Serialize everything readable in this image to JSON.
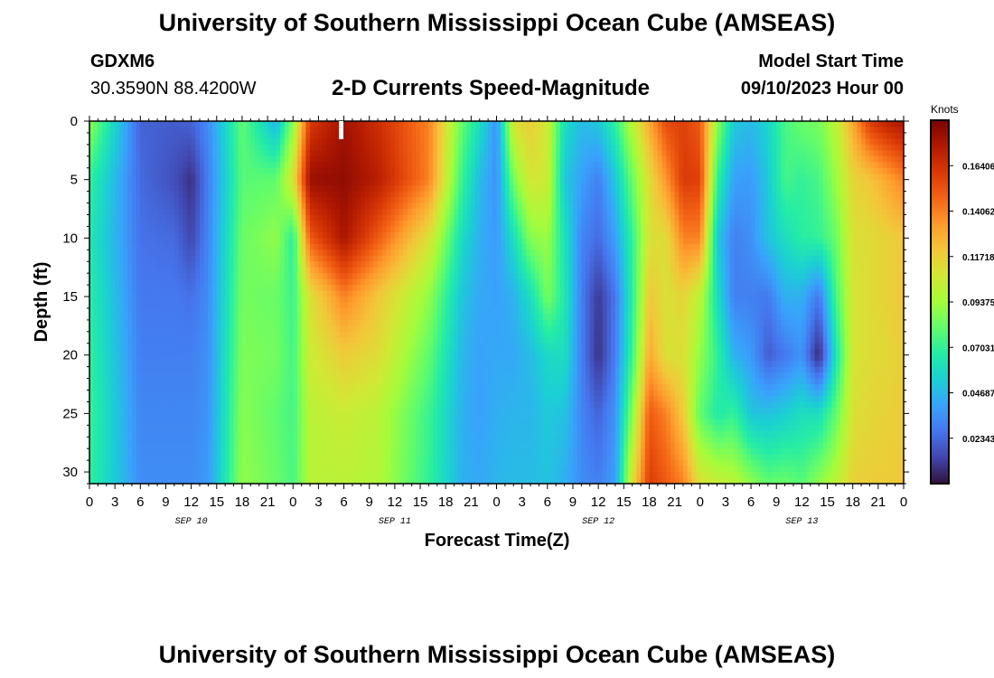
{
  "header": {
    "title": "University of Southern Mississippi Ocean Cube (AMSEAS)",
    "station": "GDXM6",
    "coords": "30.3590N  88.4200W",
    "product": "2-D Currents Speed-Magnitude",
    "model_label": "Model Start Time",
    "model_time": "09/10/2023 Hour 00"
  },
  "footer": {
    "title": "University of Southern Mississippi Ocean Cube (AMSEAS)"
  },
  "chart_data": {
    "type": "heatmap",
    "title": "2-D Currents Speed-Magnitude",
    "xlabel": "Forecast Time(Z)",
    "ylabel": "Depth (ft)",
    "x_ticks": [
      "0",
      "3",
      "6",
      "9",
      "12",
      "15",
      "18",
      "21",
      "0",
      "3",
      "6",
      "9",
      "12",
      "15",
      "18",
      "21",
      "0",
      "3",
      "6",
      "9",
      "12",
      "15",
      "18",
      "21",
      "0",
      "3",
      "6",
      "9",
      "12",
      "15",
      "18",
      "21",
      "0"
    ],
    "x_hours": [
      0,
      3,
      6,
      9,
      12,
      15,
      18,
      21,
      24,
      27,
      30,
      33,
      36,
      39,
      42,
      45,
      48,
      51,
      54,
      57,
      60,
      63,
      66,
      69,
      72,
      75,
      78,
      81,
      84,
      87,
      90,
      93,
      96
    ],
    "day_labels": [
      {
        "label": "SEP 10",
        "hour": 12
      },
      {
        "label": "SEP 11",
        "hour": 36
      },
      {
        "label": "SEP 12",
        "hour": 60
      },
      {
        "label": "SEP 13",
        "hour": 84
      }
    ],
    "xlim": [
      0,
      96
    ],
    "y_ticks": [
      0,
      5,
      10,
      15,
      20,
      25,
      30
    ],
    "ylim": [
      0,
      31
    ],
    "y_inverted": true,
    "colorbar": {
      "label": "Knots",
      "ticks": [
        "0.16406",
        "0.14062",
        "0.11718",
        "0.09375",
        "0.07031",
        "0.04687",
        "0.02343"
      ],
      "tick_values": [
        0.16406,
        0.14062,
        0.11718,
        0.09375,
        0.07031,
        0.04687,
        0.02343
      ],
      "range": [
        0,
        0.1875
      ],
      "colormap": [
        "#30123b",
        "#4145ab",
        "#4675ed",
        "#39a2fc",
        "#1bcfd4",
        "#24eca6",
        "#61fc6c",
        "#a4fc3b",
        "#d1e834",
        "#f3c63a",
        "#fe9b2d",
        "#f36315",
        "#d93806",
        "#b11901",
        "#7a0403"
      ]
    },
    "columns_hours": [
      0,
      6,
      10,
      12,
      14,
      18,
      22,
      24,
      26,
      30,
      34,
      40,
      44,
      46,
      48,
      50,
      52,
      54,
      56,
      58,
      60,
      62,
      64,
      66,
      68,
      70,
      72,
      74,
      76,
      78,
      80,
      82,
      84,
      86,
      88,
      90,
      92,
      94,
      96
    ],
    "depths_ft": [
      0,
      5,
      10,
      15,
      20,
      25,
      31
    ],
    "values_knots": [
      [
        0.09,
        0.07,
        0.065,
        0.068,
        0.07,
        0.072,
        0.07
      ],
      [
        0.022,
        0.024,
        0.026,
        0.028,
        0.03,
        0.032,
        0.034
      ],
      [
        0.02,
        0.016,
        0.024,
        0.028,
        0.03,
        0.032,
        0.034
      ],
      [
        0.022,
        0.008,
        0.014,
        0.026,
        0.03,
        0.032,
        0.034
      ],
      [
        0.034,
        0.03,
        0.032,
        0.034,
        0.035,
        0.036,
        0.038
      ],
      [
        0.08,
        0.078,
        0.082,
        0.084,
        0.086,
        0.088,
        0.09
      ],
      [
        0.045,
        0.08,
        0.09,
        0.082,
        0.084,
        0.08,
        0.082
      ],
      [
        0.09,
        0.11,
        0.068,
        0.072,
        0.074,
        0.074,
        0.075
      ],
      [
        0.16,
        0.18,
        0.15,
        0.11,
        0.105,
        0.1,
        0.1
      ],
      [
        0.178,
        0.182,
        0.176,
        0.14,
        0.118,
        0.105,
        0.1
      ],
      [
        0.165,
        0.172,
        0.15,
        0.12,
        0.112,
        0.1,
        0.098
      ],
      [
        0.14,
        0.14,
        0.11,
        0.09,
        0.08,
        0.072,
        0.07
      ],
      [
        0.08,
        0.07,
        0.058,
        0.05,
        0.046,
        0.044,
        0.044
      ],
      [
        0.06,
        0.048,
        0.044,
        0.042,
        0.04,
        0.04,
        0.042
      ],
      [
        0.036,
        0.035,
        0.038,
        0.04,
        0.042,
        0.044,
        0.046
      ],
      [
        0.11,
        0.085,
        0.06,
        0.045,
        0.042,
        0.046,
        0.048
      ],
      [
        0.118,
        0.108,
        0.088,
        0.06,
        0.048,
        0.046,
        0.048
      ],
      [
        0.105,
        0.105,
        0.092,
        0.085,
        0.058,
        0.052,
        0.05
      ],
      [
        0.06,
        0.052,
        0.062,
        0.065,
        0.06,
        0.05,
        0.044
      ],
      [
        0.048,
        0.04,
        0.032,
        0.03,
        0.03,
        0.032,
        0.034
      ],
      [
        0.052,
        0.03,
        0.024,
        0.01,
        0.008,
        0.022,
        0.03
      ],
      [
        0.07,
        0.052,
        0.04,
        0.028,
        0.03,
        0.036,
        0.04
      ],
      [
        0.1,
        0.082,
        0.07,
        0.068,
        0.072,
        0.088,
        0.11
      ],
      [
        0.13,
        0.112,
        0.11,
        0.12,
        0.13,
        0.15,
        0.16
      ],
      [
        0.155,
        0.135,
        0.112,
        0.11,
        0.11,
        0.14,
        0.15
      ],
      [
        0.158,
        0.16,
        0.14,
        0.115,
        0.11,
        0.118,
        0.14
      ],
      [
        0.15,
        0.158,
        0.14,
        0.1,
        0.09,
        0.08,
        0.11
      ],
      [
        0.09,
        0.07,
        0.052,
        0.06,
        0.07,
        0.066,
        0.104
      ],
      [
        0.052,
        0.04,
        0.03,
        0.03,
        0.045,
        0.07,
        0.1
      ],
      [
        0.048,
        0.038,
        0.035,
        0.03,
        0.038,
        0.05,
        0.09
      ],
      [
        0.056,
        0.052,
        0.05,
        0.028,
        0.02,
        0.05,
        0.08
      ],
      [
        0.075,
        0.074,
        0.06,
        0.045,
        0.028,
        0.054,
        0.082
      ],
      [
        0.082,
        0.07,
        0.068,
        0.044,
        0.036,
        0.06,
        0.078
      ],
      [
        0.085,
        0.075,
        0.07,
        0.028,
        0.005,
        0.06,
        0.09
      ],
      [
        0.1,
        0.092,
        0.082,
        0.074,
        0.062,
        0.08,
        0.1
      ],
      [
        0.13,
        0.115,
        0.11,
        0.108,
        0.108,
        0.11,
        0.116
      ],
      [
        0.16,
        0.12,
        0.112,
        0.112,
        0.112,
        0.114,
        0.118
      ],
      [
        0.17,
        0.13,
        0.116,
        0.116,
        0.114,
        0.116,
        0.118
      ],
      [
        0.176,
        0.14,
        0.12,
        0.12,
        0.118,
        0.118,
        0.12
      ]
    ]
  }
}
